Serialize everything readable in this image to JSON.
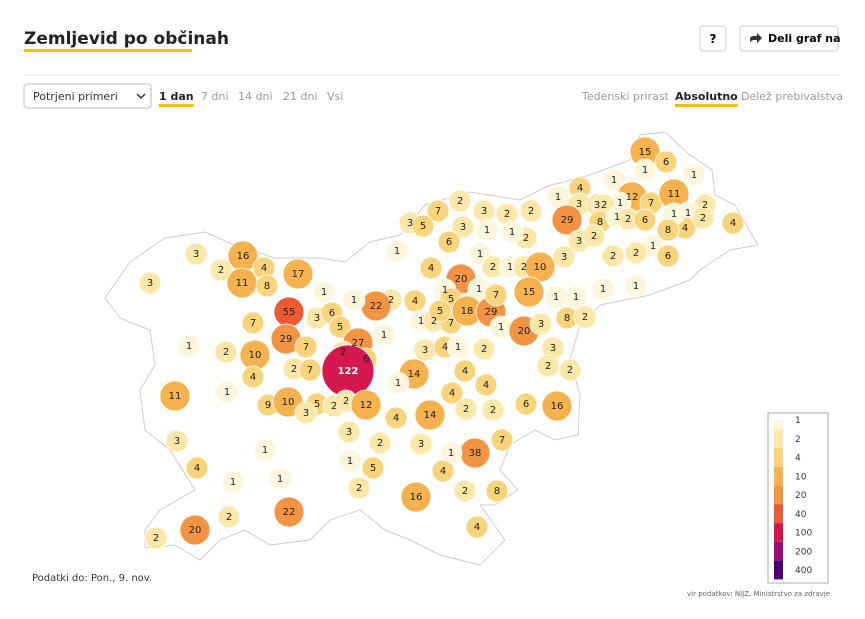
{
  "header": {
    "title": "Zemljevid po občinah",
    "help": "?",
    "share": "Deli graf na"
  },
  "controls": {
    "measure": "Potrjeni primeri",
    "periods": [
      "1 dan",
      "7 dni",
      "14 dni",
      "21 dni",
      "Vsi"
    ],
    "views": [
      "Tedenski prirast",
      "Absolutno",
      "Delež prebivalstva"
    ]
  },
  "chart_data": {
    "type": "map",
    "values": [
      15,
      6,
      1,
      1,
      4,
      1,
      12,
      7,
      11,
      1,
      3,
      3,
      1,
      2,
      1,
      4,
      7,
      2,
      3,
      2,
      2,
      29,
      2,
      8,
      1,
      2,
      6,
      1,
      2,
      4,
      8,
      3,
      5,
      3,
      2,
      3,
      1,
      1,
      2,
      6,
      1,
      2,
      1,
      2,
      3,
      6,
      3,
      16,
      2,
      4,
      17,
      11,
      8,
      3,
      4,
      1,
      2,
      1,
      2,
      10,
      20,
      1,
      15,
      1,
      1,
      1,
      1,
      1,
      1,
      5,
      2,
      4,
      22,
      1,
      7,
      55,
      3,
      6,
      5,
      1,
      2,
      7,
      5,
      18,
      29,
      7,
      1,
      20,
      3,
      8,
      2,
      1,
      2,
      29,
      7,
      27,
      2,
      10,
      1,
      3,
      4,
      1,
      2,
      3,
      6,
      122,
      2,
      2,
      4,
      2,
      14,
      1,
      4,
      11,
      1,
      4,
      4,
      9,
      10,
      7,
      5,
      2,
      2,
      12,
      6,
      16,
      3,
      4,
      14,
      2,
      2,
      3,
      3,
      2,
      3,
      38,
      7,
      1,
      4,
      1,
      5,
      1,
      4,
      1,
      1,
      2,
      16,
      2,
      8,
      2,
      22,
      20,
      2,
      4
    ],
    "legend": {
      "ticks": [
        1,
        2,
        4,
        10,
        20,
        40,
        100,
        200,
        400
      ],
      "colors": [
        "#fdf6dc",
        "#fbe7a8",
        "#f9d47a",
        "#f6b24e",
        "#f29443",
        "#ec5a35",
        "#d6164e",
        "#a20870",
        "#4b0079"
      ]
    },
    "footnote": "Podatki do: Pon., 9. nov.",
    "source": "vir podatkov: NIJZ, Ministrstvo za zdravje"
  }
}
